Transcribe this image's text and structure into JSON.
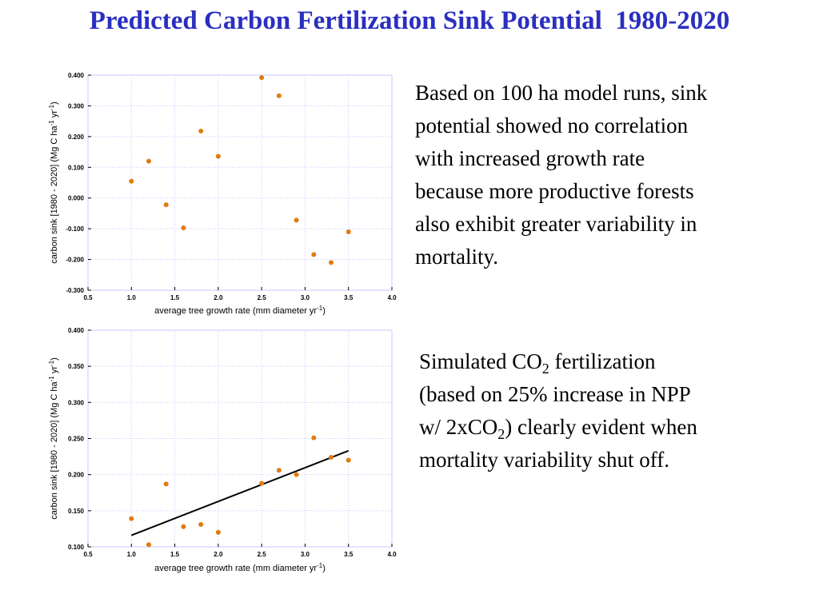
{
  "title": "Predicted Carbon Fertilization Sink Potential  1980-2020",
  "colors": {
    "title": "#2b2fbf",
    "point": "#e07b10",
    "grid": "#c8c8ff",
    "fit_line": "#000000"
  },
  "text_blocks": [
    {
      "lines": [
        "Based on 100 ha model runs, sink",
        "potential showed no correlation",
        "with increased growth rate",
        "because more productive forests",
        "also exhibit greater variability in",
        "mortality."
      ]
    },
    {
      "line1_a": "Simulated CO",
      "line1_sub": "2",
      "line1_b": " fertilization",
      "line2": "(based on 25% increase in NPP",
      "line3_a": "w/ 2xCO",
      "line3_sub": "2",
      "line3_b": ") clearly evident when",
      "line4": "mortality variability shut off."
    }
  ],
  "chart_data": [
    {
      "type": "scatter",
      "xlabel_main": "average tree growth rate (mm diameter yr",
      "xlabel_sup": "-1",
      "xlabel_end": ")",
      "ylabel_main": "carbon sink [1980 - 2020] (Mg C ha",
      "ylabel_sup1": "-1",
      "ylabel_mid": "  yr",
      "ylabel_sup2": "-1",
      "ylabel_end": ")",
      "xlim": [
        0.5,
        4.0
      ],
      "ylim": [
        -0.3,
        0.4
      ],
      "xticks": [
        0.5,
        1.0,
        1.5,
        2.0,
        2.5,
        3.0,
        3.5,
        4.0
      ],
      "xtick_labels": [
        "0.5",
        "1.0",
        "1.5",
        "2.0",
        "2.5",
        "3.0",
        "3.5",
        "4.0"
      ],
      "yticks": [
        -0.3,
        -0.2,
        -0.1,
        0.0,
        0.1,
        0.2,
        0.3,
        0.4
      ],
      "ytick_labels": [
        "-0.300",
        "-0.200",
        "-0.100",
        "0.000",
        "0.100",
        "0.200",
        "0.300",
        "0.400"
      ],
      "grid": true,
      "points": [
        {
          "x": 1.0,
          "y": 0.055
        },
        {
          "x": 1.2,
          "y": 0.12
        },
        {
          "x": 1.4,
          "y": -0.022
        },
        {
          "x": 1.6,
          "y": -0.097
        },
        {
          "x": 1.8,
          "y": 0.218
        },
        {
          "x": 2.0,
          "y": 0.136
        },
        {
          "x": 2.5,
          "y": 0.392
        },
        {
          "x": 2.7,
          "y": 0.333
        },
        {
          "x": 2.9,
          "y": -0.072
        },
        {
          "x": 3.1,
          "y": -0.184
        },
        {
          "x": 3.3,
          "y": -0.21
        },
        {
          "x": 3.5,
          "y": -0.11
        }
      ]
    },
    {
      "type": "scatter",
      "xlabel_main": "average tree growth rate (mm diameter yr",
      "xlabel_sup": "-1",
      "xlabel_end": ")",
      "ylabel_main": "carbon sink [1980 - 2020] (Mg C ha",
      "ylabel_sup1": "-1",
      "ylabel_mid": "  yr",
      "ylabel_sup2": "-1",
      "ylabel_end": ")",
      "xlim": [
        0.5,
        4.0
      ],
      "ylim": [
        0.1,
        0.4
      ],
      "xticks": [
        0.5,
        1.0,
        1.5,
        2.0,
        2.5,
        3.0,
        3.5,
        4.0
      ],
      "xtick_labels": [
        "0.5",
        "1.0",
        "1.5",
        "2.0",
        "2.5",
        "3.0",
        "3.5",
        "4.0"
      ],
      "yticks": [
        0.1,
        0.15,
        0.2,
        0.25,
        0.3,
        0.35,
        0.4
      ],
      "ytick_labels": [
        "0.100",
        "0.150",
        "0.200",
        "0.250",
        "0.300",
        "0.350",
        "0.400"
      ],
      "grid": true,
      "points": [
        {
          "x": 1.0,
          "y": 0.139
        },
        {
          "x": 1.2,
          "y": 0.103
        },
        {
          "x": 1.4,
          "y": 0.187
        },
        {
          "x": 1.6,
          "y": 0.128
        },
        {
          "x": 1.8,
          "y": 0.131
        },
        {
          "x": 2.0,
          "y": 0.12
        },
        {
          "x": 2.5,
          "y": 0.188
        },
        {
          "x": 2.7,
          "y": 0.206
        },
        {
          "x": 2.9,
          "y": 0.2
        },
        {
          "x": 3.1,
          "y": 0.251
        },
        {
          "x": 3.3,
          "y": 0.224
        },
        {
          "x": 3.5,
          "y": 0.22
        }
      ],
      "fit_line": {
        "x": [
          1.0,
          3.5
        ],
        "y": [
          0.116,
          0.233
        ]
      }
    }
  ]
}
